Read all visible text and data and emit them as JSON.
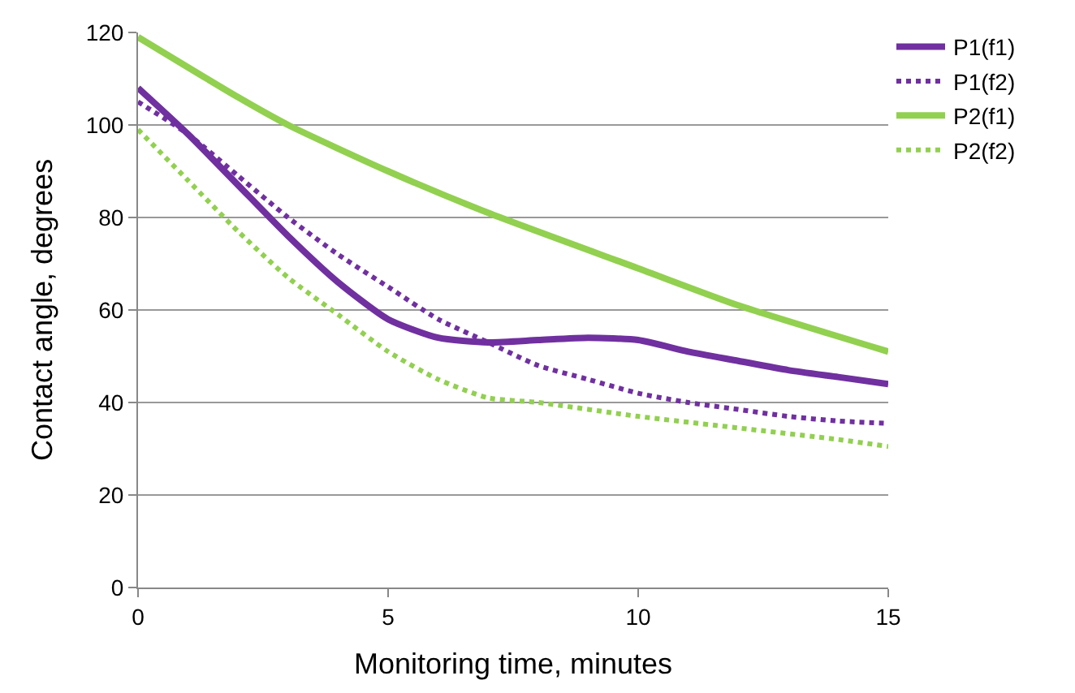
{
  "chart_data": {
    "type": "line",
    "xlabel": "Monitoring time, minutes",
    "ylabel": "Contact angle, degrees",
    "xlim": [
      0,
      15
    ],
    "xticks": [
      0,
      5,
      10,
      15
    ],
    "ylim": [
      0,
      120
    ],
    "yticks": [
      0,
      20,
      40,
      60,
      80,
      100,
      120
    ],
    "grid": "y",
    "legend": "top right",
    "marker": "none",
    "series": [
      {
        "name": "P1(f1)",
        "color": "#7030a0",
        "line_style": "solid",
        "x": [
          0,
          1,
          2,
          3,
          4,
          5,
          6,
          7,
          8,
          9,
          10,
          11,
          12,
          13,
          14,
          15
        ],
        "values": [
          108,
          98,
          87,
          76,
          66,
          58,
          54,
          53,
          53.5,
          54,
          53.5,
          51,
          49,
          47,
          45.5,
          44
        ]
      },
      {
        "name": "P1(f2)",
        "color": "#7030a0",
        "line_style": "dotted",
        "x": [
          0,
          1,
          2,
          3,
          4,
          5,
          6,
          7,
          8,
          9,
          10,
          11,
          12,
          13,
          14,
          15
        ],
        "values": [
          105,
          98,
          89,
          80,
          72,
          65,
          58,
          53,
          48,
          45,
          42,
          40,
          38.5,
          37,
          36,
          35.5
        ]
      },
      {
        "name": "P2(f1)",
        "color": "#92d050",
        "line_style": "solid",
        "x": [
          0,
          2,
          3,
          5,
          7,
          10,
          12,
          15
        ],
        "values": [
          119,
          106,
          100,
          90,
          81,
          69,
          61,
          51
        ]
      },
      {
        "name": "P2(f2)",
        "color": "#92d050",
        "line_style": "dotted",
        "x": [
          0,
          1,
          2,
          3,
          4,
          5,
          6,
          7,
          8,
          10,
          12,
          14,
          15
        ],
        "values": [
          99,
          88,
          77,
          67,
          59,
          51,
          45,
          41,
          40,
          37,
          34.5,
          32,
          30.5
        ]
      }
    ]
  }
}
